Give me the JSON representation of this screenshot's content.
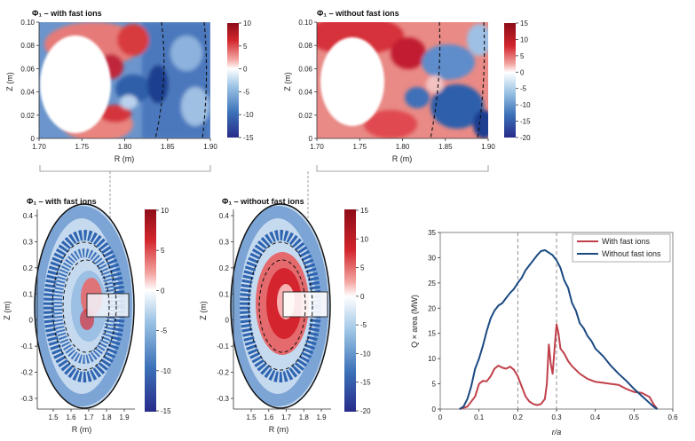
{
  "chart_data": [
    {
      "id": "zoom_with",
      "type": "heatmap",
      "title": "Φ₁ – with fast ions",
      "xlabel": "R (m)",
      "ylabel": "Z (m)",
      "xlim": [
        1.7,
        1.9
      ],
      "ylim": [
        0,
        0.1
      ],
      "xticks": [
        "1.70",
        "1.75",
        "1.80",
        "1.85",
        "1.90"
      ],
      "yticks": [
        "0",
        "0.02",
        "0.04",
        "0.06",
        "0.08",
        "0.10"
      ],
      "colorbar": {
        "ticks": [
          "10",
          "5",
          "0",
          "-5",
          "-10",
          "-15"
        ],
        "range": [
          -15,
          10
        ]
      },
      "colors": {
        "low": "#2a3590",
        "mid": "#ffffff",
        "high": "#b0101e"
      }
    },
    {
      "id": "zoom_without",
      "type": "heatmap",
      "title": "Φ₁ – without fast ions",
      "xlabel": "R (m)",
      "ylabel": "Z (m)",
      "xlim": [
        1.7,
        1.9
      ],
      "ylim": [
        0,
        0.1
      ],
      "xticks": [
        "1.70",
        "1.75",
        "1.80",
        "1.85",
        "1.90"
      ],
      "yticks": [
        "0",
        "0.02",
        "0.04",
        "0.06",
        "0.08",
        "0.10"
      ],
      "colorbar": {
        "ticks": [
          "15",
          "10",
          "5",
          "0",
          "-5",
          "-10",
          "-15",
          "-20"
        ],
        "range": [
          -20,
          15
        ]
      }
    },
    {
      "id": "cross_with",
      "type": "heatmap",
      "title": "Φ₁ – with fast ions",
      "xlabel": "R (m)",
      "ylabel": "Z (m)",
      "xticks": [
        "1.5",
        "1.6",
        "1.7",
        "1.8",
        "1.9"
      ],
      "yticks": [
        "0.4",
        "0.3",
        "0.2",
        "0.1",
        "0",
        "-0.1",
        "-0.2",
        "-0.3"
      ],
      "colorbar": {
        "ticks": [
          "10",
          "5",
          "0",
          "-5",
          "-10",
          "-15"
        ],
        "range": [
          -15,
          10
        ]
      }
    },
    {
      "id": "cross_without",
      "type": "heatmap",
      "title": "Φ₁ – without fast ions",
      "xlabel": "R (m)",
      "ylabel": "Z (m)",
      "xticks": [
        "1.5",
        "1.6",
        "1.7",
        "1.8",
        "1.9"
      ],
      "yticks": [
        "0.4",
        "0.3",
        "0.2",
        "0.1",
        "0",
        "-0.1",
        "-0.2",
        "-0.3"
      ],
      "colorbar": {
        "ticks": [
          "15",
          "10",
          "5",
          "0",
          "-5",
          "-10",
          "-15",
          "-20"
        ],
        "range": [
          -20,
          15
        ]
      }
    },
    {
      "id": "heat_flux",
      "type": "line",
      "xlabel": "r/a",
      "ylabel": "Q × area (MW)",
      "xlim": [
        0,
        0.6
      ],
      "ylim": [
        0,
        35
      ],
      "xticks": [
        "0",
        "0.1",
        "0.2",
        "0.3",
        "0.4",
        "0.5",
        "0.6"
      ],
      "yticks": [
        "0",
        "5",
        "10",
        "15",
        "20",
        "25",
        "30",
        "35"
      ],
      "legend_position": "top-right",
      "vlines": [
        0.2,
        0.3
      ],
      "series": [
        {
          "name": "With fast ions",
          "color": "#c0404a",
          "x": [
            0.05,
            0.07,
            0.09,
            0.1,
            0.11,
            0.12,
            0.13,
            0.14,
            0.15,
            0.16,
            0.17,
            0.18,
            0.19,
            0.2,
            0.21,
            0.22,
            0.23,
            0.24,
            0.25,
            0.26,
            0.27,
            0.275,
            0.28,
            0.285,
            0.29,
            0.295,
            0.3,
            0.305,
            0.31,
            0.32,
            0.33,
            0.34,
            0.36,
            0.38,
            0.4,
            0.42,
            0.44,
            0.46,
            0.48,
            0.5,
            0.52,
            0.54,
            0.55,
            0.56
          ],
          "y": [
            0,
            0.5,
            2.5,
            5,
            5.6,
            5.5,
            6.5,
            8,
            8.6,
            8.2,
            8,
            8.4,
            7.8,
            6.5,
            4.5,
            2.5,
            1.5,
            1,
            0.8,
            1,
            2,
            5,
            12.8,
            9,
            7,
            12,
            16.8,
            15,
            12,
            11,
            9.5,
            8.5,
            7,
            6,
            5.4,
            5.2,
            5,
            4.8,
            4,
            3.4,
            3.2,
            2.4,
            1,
            0
          ]
        },
        {
          "name": "Without fast ions",
          "color": "#1b4a82",
          "x": [
            0.05,
            0.06,
            0.07,
            0.08,
            0.09,
            0.1,
            0.11,
            0.12,
            0.13,
            0.14,
            0.15,
            0.16,
            0.17,
            0.18,
            0.19,
            0.2,
            0.21,
            0.22,
            0.23,
            0.24,
            0.25,
            0.26,
            0.27,
            0.28,
            0.29,
            0.3,
            0.31,
            0.32,
            0.33,
            0.34,
            0.35,
            0.36,
            0.37,
            0.38,
            0.39,
            0.4,
            0.42,
            0.44,
            0.46,
            0.48,
            0.5,
            0.52,
            0.54,
            0.55,
            0.56
          ],
          "y": [
            0,
            0.5,
            2,
            4.5,
            8,
            10,
            12.5,
            15.5,
            18,
            19.5,
            20.5,
            21,
            22,
            23,
            23.8,
            25,
            26,
            27.5,
            28.5,
            29.5,
            30.5,
            31.3,
            31.5,
            31,
            30.5,
            29.5,
            28,
            25.5,
            24,
            21,
            19.5,
            17,
            16,
            14.5,
            13.5,
            12,
            10.5,
            8.6,
            7,
            5.6,
            4,
            2.6,
            1.2,
            0.5,
            0
          ]
        }
      ]
    }
  ]
}
